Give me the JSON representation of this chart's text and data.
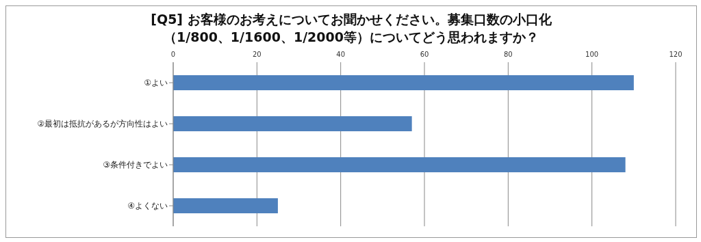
{
  "chart_data": {
    "type": "bar",
    "orientation": "horizontal",
    "title": "[Q5] お客様のお考えについてお聞かせください。募集口数の小口化（1/800、1/1600、1/2000等）についてどう思われますか？",
    "categories": [
      "①よい",
      "②最初は抵抗があるが方向性はよい",
      "③条件付きでよい",
      "④よくない"
    ],
    "values": [
      110,
      57,
      108,
      25
    ],
    "color": "#4f81bd",
    "xlim": [
      0,
      120
    ],
    "xticks": [
      0,
      20,
      40,
      60,
      80,
      100,
      120
    ],
    "grid": "x"
  }
}
